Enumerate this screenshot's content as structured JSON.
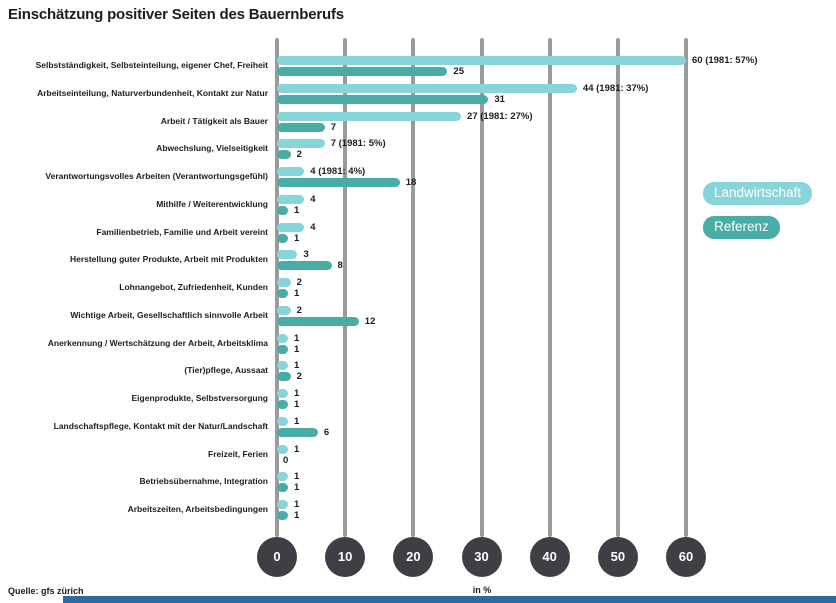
{
  "title": "Einschätzung positiver Seiten des Bauernberufs",
  "source": "Quelle: gfs zürich",
  "legend": [
    {
      "label": "Landwirtschaft",
      "color": "#88d4db"
    },
    {
      "label": "Referenz",
      "color": "#4aaca7"
    }
  ],
  "axis": {
    "ticks": [
      0,
      10,
      20,
      30,
      40,
      50,
      60
    ],
    "unit_label": "in %"
  },
  "colors": {
    "bar_light": "#88d4db",
    "bar_dark": "#4aaca7",
    "grid": "#9b9b9b",
    "tick_circle": "#3e3e44",
    "text": "#1c1c24",
    "footer_bar": "#2e6a9e"
  },
  "chart_data": {
    "type": "bar",
    "orientation": "horizontal",
    "title": "Einschätzung positiver Seiten des Bauernberufs",
    "xlabel": "in %",
    "xlim": [
      0,
      60
    ],
    "grid": true,
    "legend_position": "right",
    "categories": [
      "Selbstständigkeit, Selbsteinteilung, eigener Chef, Freiheit",
      "Arbeitseinteilung, Naturverbundenheit, Kontakt zur Natur",
      "Arbeit / Tätigkeit als Bauer",
      "Abwechslung, Vielseitigkeit",
      "Verantwortungsvolles Arbeiten (Verantwortungsgefühl)",
      "Mithilfe / Weiterentwicklung",
      "Familienbetrieb, Familie und Arbeit vereint",
      "Herstellung guter Produkte, Arbeit mit Produkten",
      "Lohnangebot, Zufriedenheit, Kunden",
      "Wichtige Arbeit, Gesellschaftlich sinnvolle Arbeit",
      "Anerkennung / Wertschätzung der Arbeit, Arbeitsklima",
      "(Tier)pflege, Aussaat",
      "Eigenprodukte, Selbstversorgung",
      "Landschaftspflege, Kontakt mit der Natur/Landschaft",
      "Freizeit, Ferien",
      "Betriebsübernahme, Integration",
      "Arbeitszeiten, Arbeitsbedingungen"
    ],
    "series": [
      {
        "name": "Landwirtschaft",
        "color": "#88d4db",
        "values": [
          60,
          44,
          27,
          7,
          4,
          4,
          4,
          3,
          2,
          2,
          1,
          1,
          1,
          1,
          1,
          1,
          1
        ],
        "value_labels": [
          "60 (1981: 57%)",
          "44 (1981: 37%)",
          "27 (1981: 27%)",
          "7 (1981: 5%)",
          "4 (1981: 4%)",
          "4",
          "4",
          "3",
          "2",
          "2",
          "1",
          "1",
          "1",
          "1",
          "1",
          "1",
          "1"
        ]
      },
      {
        "name": "Referenz",
        "color": "#4aaca7",
        "values": [
          25,
          31,
          7,
          2,
          18,
          1,
          1,
          8,
          1,
          12,
          1,
          2,
          1,
          6,
          0,
          1,
          1
        ],
        "value_labels": [
          "25",
          "31",
          "7",
          "2",
          "18",
          "1",
          "1",
          "8",
          "1",
          "12",
          "1",
          "2",
          "1",
          "6",
          "0",
          "1",
          "1"
        ]
      }
    ]
  }
}
